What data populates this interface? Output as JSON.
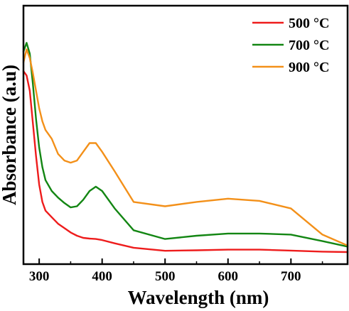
{
  "chart_data": {
    "type": "line",
    "title": "",
    "xlabel": "Wavelength (nm)",
    "ylabel": "Absorbance (a.u)",
    "xlim": [
      275,
      790
    ],
    "ylim": [
      0,
      1
    ],
    "x_ticks": [
      300,
      400,
      500,
      600,
      700
    ],
    "x_tick_labels": [
      "300",
      "400",
      "500",
      "600",
      "700"
    ],
    "y_ticks_labeled": false,
    "grid": false,
    "legend_position": "top-right",
    "series": [
      {
        "name": "500 °C",
        "color": "#ee1c1c",
        "x": [
          275,
          280,
          285,
          290,
          295,
          300,
          305,
          310,
          320,
          330,
          340,
          350,
          360,
          370,
          380,
          390,
          400,
          420,
          450,
          500,
          550,
          600,
          650,
          700,
          750,
          790
        ],
        "y": [
          0.83,
          0.81,
          0.74,
          0.59,
          0.44,
          0.31,
          0.23,
          0.19,
          0.16,
          0.13,
          0.11,
          0.09,
          0.075,
          0.065,
          0.062,
          0.06,
          0.055,
          0.04,
          0.02,
          0.006,
          0.008,
          0.011,
          0.011,
          0.007,
          0.002,
          0.0
        ]
      },
      {
        "name": "700 °C",
        "color": "#138613",
        "x": [
          275,
          280,
          285,
          290,
          295,
          300,
          305,
          310,
          320,
          330,
          340,
          350,
          360,
          370,
          380,
          390,
          400,
          420,
          450,
          500,
          550,
          600,
          650,
          700,
          750,
          790
        ],
        "y": [
          0.92,
          0.96,
          0.91,
          0.77,
          0.61,
          0.48,
          0.39,
          0.33,
          0.28,
          0.25,
          0.225,
          0.205,
          0.21,
          0.24,
          0.28,
          0.3,
          0.28,
          0.2,
          0.1,
          0.06,
          0.075,
          0.085,
          0.085,
          0.08,
          0.05,
          0.025
        ]
      },
      {
        "name": "900 °C",
        "color": "#f39019",
        "x": [
          275,
          280,
          285,
          290,
          295,
          300,
          305,
          310,
          320,
          330,
          340,
          350,
          360,
          370,
          380,
          390,
          400,
          420,
          450,
          500,
          550,
          600,
          650,
          700,
          750,
          790
        ],
        "y": [
          0.87,
          0.93,
          0.89,
          0.82,
          0.74,
          0.66,
          0.6,
          0.56,
          0.52,
          0.45,
          0.42,
          0.41,
          0.42,
          0.46,
          0.5,
          0.5,
          0.46,
          0.37,
          0.23,
          0.21,
          0.23,
          0.245,
          0.235,
          0.2,
          0.08,
          0.03
        ]
      }
    ]
  }
}
